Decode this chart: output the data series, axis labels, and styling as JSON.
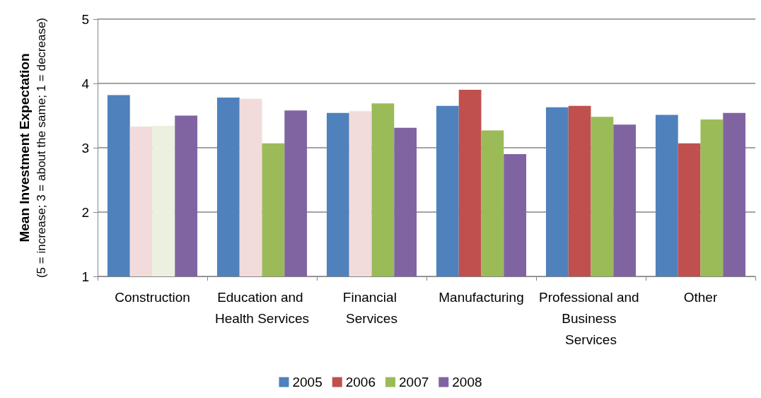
{
  "chart_data": {
    "type": "bar",
    "ylabel": "Mean Investment Expectation\n(5 = increase; 3 = about the same; 1 = decrease)",
    "categories": [
      "Construction",
      "Education and Health Services",
      "Financial Services",
      "Manufacturing",
      "Professional and Business Services",
      "Other"
    ],
    "series": [
      {
        "name": "2005",
        "color": "#4f81bd",
        "values": [
          3.82,
          3.78,
          3.54,
          3.65,
          3.63,
          3.51
        ]
      },
      {
        "name": "2006",
        "color": "#c0504d",
        "colors": [
          "#f2dcdb",
          "#f2dcdb",
          "#f2dcdb",
          "#c0504d",
          "#c0504d",
          "#c0504d"
        ],
        "values": [
          3.33,
          3.76,
          3.57,
          3.9,
          3.65,
          3.07
        ]
      },
      {
        "name": "2007",
        "color": "#9bbb59",
        "colors": [
          "#ebf1de",
          "#9bbb59",
          "#9bbb59",
          "#9bbb59",
          "#9bbb59",
          "#9bbb59"
        ],
        "values": [
          3.34,
          3.07,
          3.69,
          3.27,
          3.48,
          3.44
        ]
      },
      {
        "name": "2008",
        "color": "#8064a2",
        "values": [
          3.5,
          3.58,
          3.31,
          2.9,
          3.36,
          3.54
        ]
      }
    ],
    "ylim": [
      1,
      5
    ],
    "yticks": [
      1,
      2,
      3,
      4,
      5
    ],
    "grid": "y",
    "legend": "bottom"
  }
}
